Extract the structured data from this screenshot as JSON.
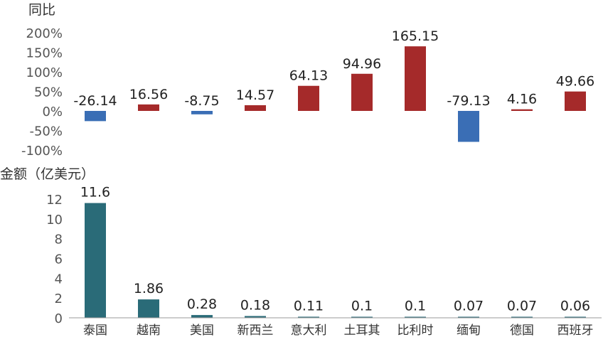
{
  "chart_data": [
    {
      "type": "bar",
      "ylabel": "同比",
      "categories": [
        "泰国",
        "越南",
        "美国",
        "新西兰",
        "意大利",
        "土耳其",
        "比利时",
        "缅甸",
        "德国",
        "西班牙"
      ],
      "values": [
        -26.14,
        16.56,
        -8.75,
        14.57,
        64.13,
        94.96,
        165.15,
        -79.13,
        4.16,
        49.66
      ],
      "data_labels": [
        "-26.14",
        "16.56",
        "-8.75",
        "14.57",
        "64.13",
        "94.96",
        "165.15",
        "-79.13",
        "4.16",
        "49.66"
      ],
      "ylim": [
        -100,
        200
      ],
      "yticks": [
        "-100%",
        "-50%",
        "0%",
        "50%",
        "100%",
        "150%",
        "200%"
      ],
      "colors": {
        "positive": "#a52a2a",
        "negative": "#3a6eb5"
      }
    },
    {
      "type": "bar",
      "ylabel": "金额（亿美元）",
      "categories": [
        "泰国",
        "越南",
        "美国",
        "新西兰",
        "意大利",
        "土耳其",
        "比利时",
        "缅甸",
        "德国",
        "西班牙"
      ],
      "values": [
        11.6,
        1.86,
        0.28,
        0.18,
        0.11,
        0.1,
        0.1,
        0.07,
        0.07,
        0.06
      ],
      "data_labels": [
        "11.6",
        "1.86",
        "0.28",
        "0.18",
        "0.11",
        "0.1",
        "0.1",
        "0.07",
        "0.07",
        "0.06"
      ],
      "ylim": [
        0,
        12
      ],
      "yticks": [
        "0",
        "2",
        "4",
        "6",
        "8",
        "10",
        "12"
      ],
      "colors": {
        "bar": "#2a6b78",
        "axis": "#999999"
      }
    }
  ]
}
